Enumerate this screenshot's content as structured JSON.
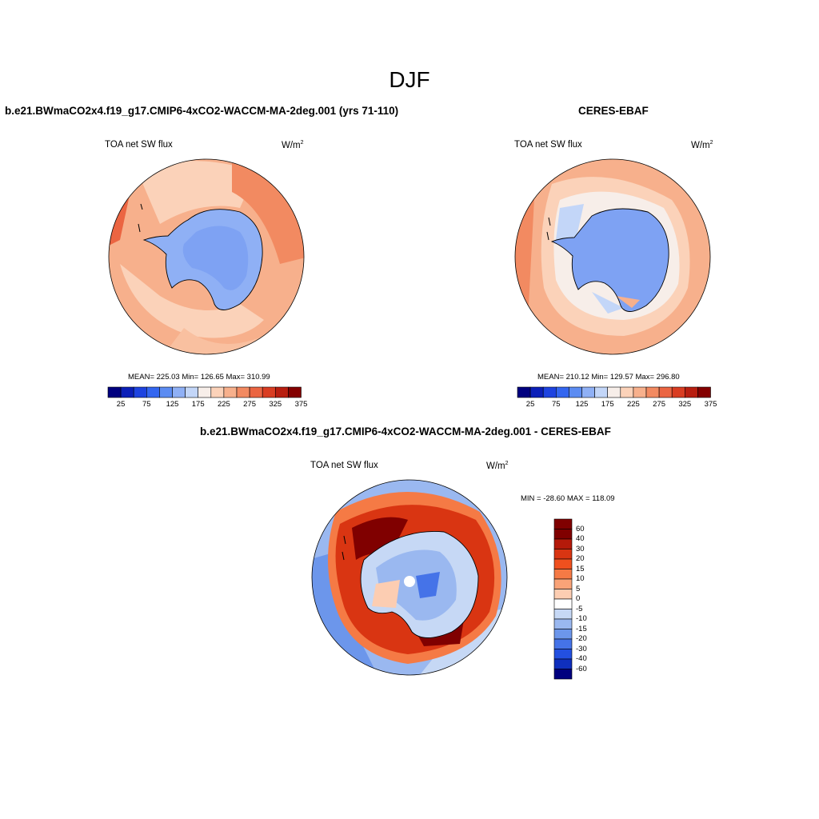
{
  "figure": {
    "season": "DJF",
    "panels": [
      {
        "id": "model",
        "title": "b.e21.BWmaCO2x4.f19_g17.CMIP6-4xCO2-WACCM-MA-2deg.001 (yrs 71-110)",
        "variable": "TOA net SW flux",
        "units_base": "W/m",
        "units_exp": "2",
        "stats": "MEAN= 225.03  Min= 126.65  Max= 310.99",
        "colorbar_ticks": [
          "25",
          "75",
          "125",
          "175",
          "225",
          "275",
          "325",
          "375"
        ]
      },
      {
        "id": "obs",
        "title": "CERES-EBAF",
        "variable": "TOA net SW flux",
        "units_base": "W/m",
        "units_exp": "2",
        "stats": "MEAN= 210.12  Min= 129.57  Max= 296.80",
        "colorbar_ticks": [
          "25",
          "75",
          "125",
          "175",
          "225",
          "275",
          "325",
          "375"
        ]
      },
      {
        "id": "diff",
        "title": "b.e21.BWmaCO2x4.f19_g17.CMIP6-4xCO2-WACCM-MA-2deg.001 - CERES-EBAF",
        "variable": "TOA net SW flux",
        "units_base": "W/m",
        "units_exp": "2",
        "stats": "MIN = -28.60 MAX = 118.09",
        "colorbar_ticks": [
          "60",
          "40",
          "30",
          "20",
          "15",
          "10",
          "5",
          "0",
          "-5",
          "-10",
          "-15",
          "-20",
          "-30",
          "-40",
          "-60"
        ]
      }
    ],
    "colors": {
      "abs_scale": [
        "#00007f",
        "#0b1fb8",
        "#1d43e0",
        "#3366f0",
        "#5c8cf2",
        "#8fb0f5",
        "#c3d6f8",
        "#f7eee9",
        "#fbd2b9",
        "#f7b08c",
        "#f28a61",
        "#eb6542",
        "#d93d22",
        "#b81e10",
        "#840000"
      ],
      "diff_scale": [
        "#800000",
        "#b51a0a",
        "#d93512",
        "#f0501e",
        "#f57a45",
        "#f9a378",
        "#fccdb2",
        "#ffffff",
        "#c6d8f5",
        "#9ab8f0",
        "#6c96eb",
        "#4573e8",
        "#2350e0",
        "#0f2fbd",
        "#00007f"
      ]
    }
  }
}
